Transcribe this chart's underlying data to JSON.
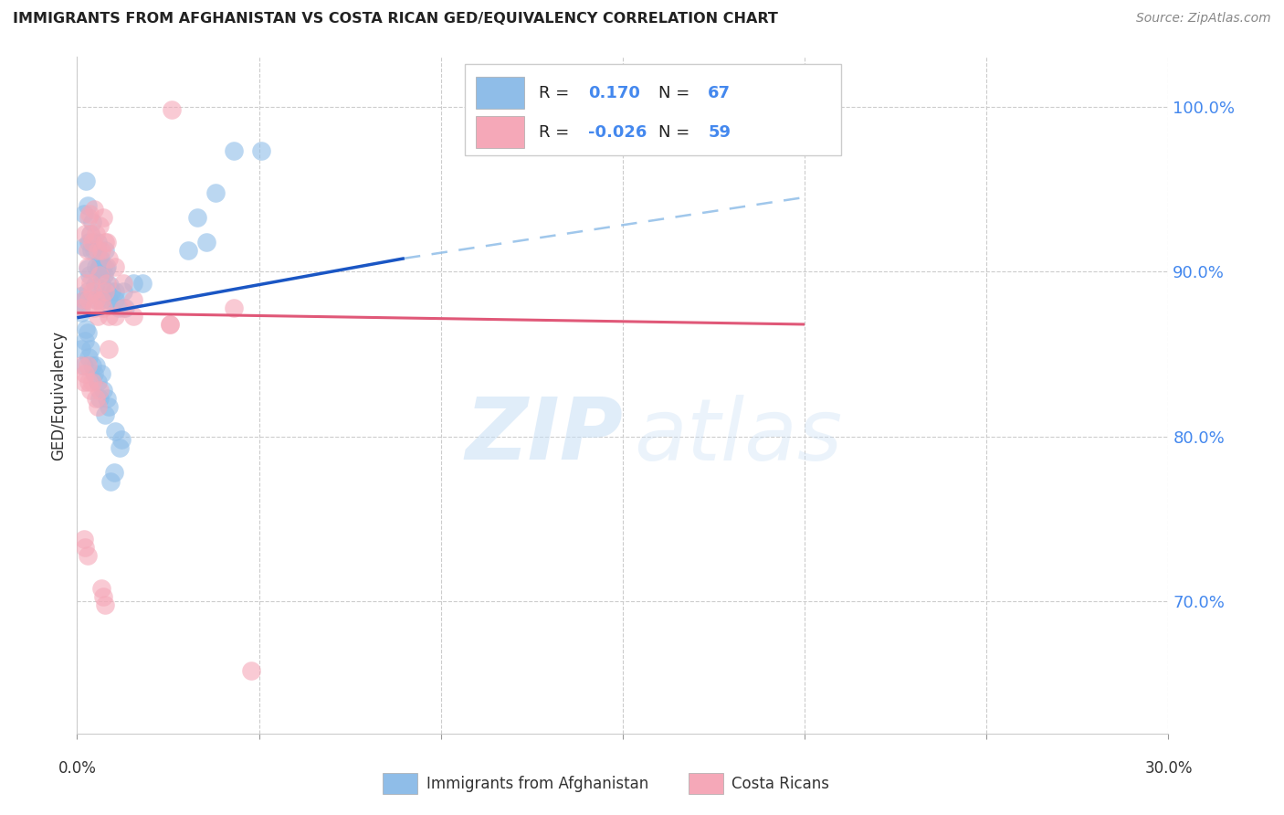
{
  "title": "IMMIGRANTS FROM AFGHANISTAN VS COSTA RICAN GED/EQUIVALENCY CORRELATION CHART",
  "source": "Source: ZipAtlas.com",
  "ylabel": "GED/Equivalency",
  "x_range": [
    0.0,
    30.0
  ],
  "y_range": [
    62.0,
    103.0
  ],
  "y_ticks": [
    70.0,
    80.0,
    90.0,
    100.0
  ],
  "y_tick_labels": [
    "70.0%",
    "80.0%",
    "90.0%",
    "100.0%"
  ],
  "blue_color": "#8fbde8",
  "pink_color": "#f5a8b8",
  "blue_line_color": "#1a56c4",
  "pink_line_color": "#e05878",
  "blue_dash_color": "#8fbde8",
  "watermark_zip": "ZIP",
  "watermark_atlas": "atlas",
  "blue_scatter": [
    [
      0.15,
      88.2
    ],
    [
      0.2,
      91.5
    ],
    [
      0.25,
      86.5
    ],
    [
      0.3,
      90.2
    ],
    [
      0.3,
      88.8
    ],
    [
      0.35,
      89.8
    ],
    [
      0.4,
      91.3
    ],
    [
      0.45,
      91.8
    ],
    [
      0.5,
      89.2
    ],
    [
      0.55,
      88.3
    ],
    [
      0.6,
      90.2
    ],
    [
      0.65,
      90.8
    ],
    [
      0.7,
      88.3
    ],
    [
      0.75,
      89.8
    ],
    [
      0.8,
      90.2
    ],
    [
      0.85,
      88.3
    ],
    [
      0.9,
      89.2
    ],
    [
      0.95,
      88.8
    ],
    [
      1.05,
      88.3
    ],
    [
      1.15,
      87.8
    ],
    [
      0.2,
      93.5
    ],
    [
      0.25,
      95.5
    ],
    [
      0.28,
      94.0
    ],
    [
      0.32,
      91.8
    ],
    [
      0.38,
      92.3
    ],
    [
      0.42,
      93.0
    ],
    [
      0.48,
      91.3
    ],
    [
      0.52,
      90.3
    ],
    [
      0.58,
      91.8
    ],
    [
      0.62,
      90.3
    ],
    [
      0.68,
      89.3
    ],
    [
      0.72,
      90.3
    ],
    [
      0.78,
      91.3
    ],
    [
      0.82,
      90.3
    ],
    [
      0.88,
      88.3
    ],
    [
      1.05,
      88.8
    ],
    [
      1.28,
      88.8
    ],
    [
      1.32,
      87.8
    ],
    [
      1.55,
      89.3
    ],
    [
      1.8,
      89.3
    ],
    [
      0.12,
      85.3
    ],
    [
      0.18,
      84.3
    ],
    [
      0.22,
      85.8
    ],
    [
      0.28,
      86.3
    ],
    [
      0.32,
      84.8
    ],
    [
      0.38,
      85.3
    ],
    [
      0.42,
      84.3
    ],
    [
      0.48,
      83.8
    ],
    [
      0.52,
      84.3
    ],
    [
      0.58,
      83.3
    ],
    [
      0.62,
      82.3
    ],
    [
      0.68,
      83.8
    ],
    [
      0.72,
      82.8
    ],
    [
      0.78,
      81.3
    ],
    [
      0.82,
      82.3
    ],
    [
      0.88,
      81.8
    ],
    [
      1.05,
      80.3
    ],
    [
      1.18,
      79.3
    ],
    [
      1.22,
      79.8
    ],
    [
      3.3,
      93.3
    ],
    [
      3.8,
      94.8
    ],
    [
      4.3,
      97.3
    ],
    [
      5.05,
      97.3
    ],
    [
      3.05,
      91.3
    ],
    [
      3.55,
      91.8
    ],
    [
      0.92,
      77.3
    ],
    [
      1.02,
      77.8
    ],
    [
      0.1,
      88.5
    ],
    [
      0.12,
      87.5
    ]
  ],
  "pink_scatter": [
    [
      0.12,
      87.8
    ],
    [
      0.18,
      88.3
    ],
    [
      0.22,
      89.3
    ],
    [
      0.28,
      90.3
    ],
    [
      0.32,
      88.3
    ],
    [
      0.38,
      89.3
    ],
    [
      0.42,
      88.8
    ],
    [
      0.48,
      87.8
    ],
    [
      0.52,
      88.3
    ],
    [
      0.58,
      87.3
    ],
    [
      0.62,
      89.8
    ],
    [
      0.68,
      88.3
    ],
    [
      0.72,
      87.8
    ],
    [
      0.78,
      88.8
    ],
    [
      0.82,
      89.3
    ],
    [
      0.88,
      87.3
    ],
    [
      1.05,
      87.3
    ],
    [
      1.28,
      87.8
    ],
    [
      0.22,
      92.3
    ],
    [
      0.28,
      91.3
    ],
    [
      0.32,
      93.3
    ],
    [
      0.38,
      92.3
    ],
    [
      0.42,
      91.8
    ],
    [
      0.48,
      93.8
    ],
    [
      0.52,
      92.3
    ],
    [
      0.58,
      91.3
    ],
    [
      0.62,
      92.8
    ],
    [
      0.68,
      91.3
    ],
    [
      0.72,
      93.3
    ],
    [
      0.78,
      91.8
    ],
    [
      0.82,
      91.8
    ],
    [
      0.88,
      90.8
    ],
    [
      1.05,
      90.3
    ],
    [
      1.28,
      89.3
    ],
    [
      1.55,
      88.3
    ],
    [
      0.12,
      84.3
    ],
    [
      0.18,
      83.3
    ],
    [
      0.22,
      83.8
    ],
    [
      0.28,
      84.3
    ],
    [
      0.32,
      83.3
    ],
    [
      0.38,
      82.8
    ],
    [
      0.42,
      83.3
    ],
    [
      0.52,
      82.3
    ],
    [
      0.58,
      81.8
    ],
    [
      0.62,
      82.8
    ],
    [
      0.68,
      70.8
    ],
    [
      0.72,
      70.3
    ],
    [
      0.78,
      69.8
    ],
    [
      1.55,
      87.3
    ],
    [
      2.55,
      86.8
    ],
    [
      2.6,
      99.8
    ],
    [
      2.55,
      86.8
    ],
    [
      4.3,
      87.8
    ],
    [
      4.78,
      65.8
    ],
    [
      0.18,
      73.8
    ],
    [
      0.22,
      73.3
    ],
    [
      0.28,
      72.8
    ],
    [
      0.88,
      85.3
    ],
    [
      0.35,
      93.5
    ]
  ],
  "blue_solid_x1": 0.0,
  "blue_solid_y1": 87.2,
  "blue_solid_x2": 9.0,
  "blue_solid_y2": 90.8,
  "blue_dash_x2": 20.0,
  "blue_dash_y2": 94.5,
  "pink_solid_x1": 0.0,
  "pink_solid_y1": 87.5,
  "pink_solid_x2": 20.0,
  "pink_solid_y2": 86.8
}
